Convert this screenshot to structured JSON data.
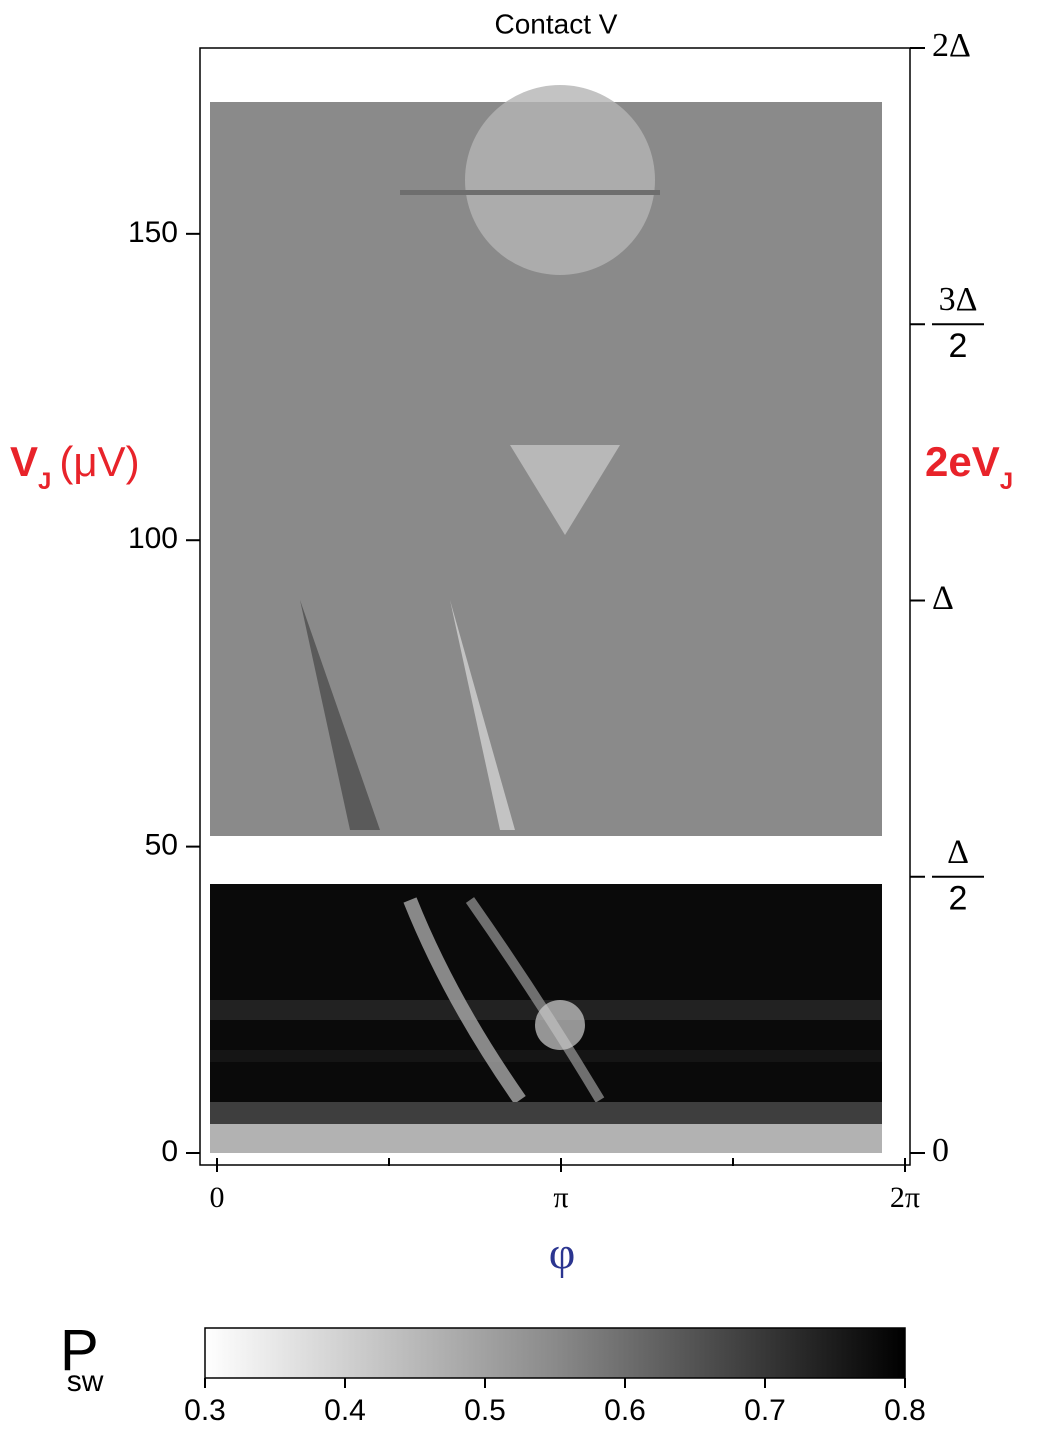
{
  "chart_data": {
    "type": "heatmap",
    "title": "Contact V",
    "xlabel": "φ",
    "ylabel": {
      "main": "V",
      "sub": "J",
      "unit": "(μV)"
    },
    "y2label": {
      "main": "2eV",
      "sub": "J"
    },
    "xlim": [
      0,
      6.2832
    ],
    "xticks": [
      0,
      {
        "value": 3.1416,
        "label": "π"
      },
      {
        "value": 6.2832,
        "label": "2π"
      }
    ],
    "xminorticks": [
      1.5708,
      4.7124
    ],
    "ylim": [
      0,
      180
    ],
    "yticks": [
      0,
      50,
      100,
      150
    ],
    "y2lim": [
      0,
      2
    ],
    "y2ticks": [
      0,
      {
        "value": 0.5,
        "label": "Δ/2"
      },
      {
        "value": 1,
        "label": "Δ"
      },
      {
        "value": 1.5,
        "label": "3Δ/2"
      },
      {
        "value": 2,
        "label": "2Δ"
      }
    ],
    "colorbar": {
      "label": {
        "main": "P",
        "sub": "sw"
      },
      "clim": [
        0.3,
        0.8
      ],
      "ticks": [
        0.3,
        0.4,
        0.5,
        0.6,
        0.7,
        0.8
      ]
    }
  }
}
